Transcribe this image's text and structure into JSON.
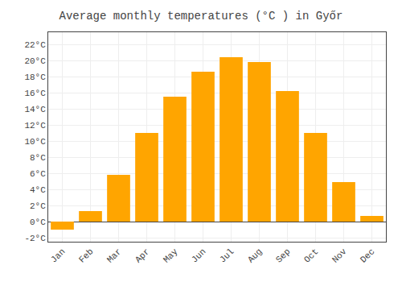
{
  "chart_data": {
    "type": "bar",
    "title": "Average monthly temperatures (°C ) in Győr",
    "categories": [
      "Jan",
      "Feb",
      "Mar",
      "Apr",
      "May",
      "Jun",
      "Jul",
      "Aug",
      "Sep",
      "Oct",
      "Nov",
      "Dec"
    ],
    "values": [
      -1.0,
      1.3,
      5.8,
      11.0,
      15.5,
      18.6,
      20.4,
      19.8,
      16.2,
      11.0,
      4.9,
      0.7
    ],
    "color": "#FFA500",
    "ylim": [
      -2.5,
      23.5
    ],
    "yticks": [
      {
        "value": -2,
        "label": "-2°C"
      },
      {
        "value": 0,
        "label": "0°C"
      },
      {
        "value": 2,
        "label": "2°C"
      },
      {
        "value": 4,
        "label": "4°C"
      },
      {
        "value": 6,
        "label": "6°C"
      },
      {
        "value": 8,
        "label": "8°C"
      },
      {
        "value": 10,
        "label": "10°C"
      },
      {
        "value": 12,
        "label": "12°C"
      },
      {
        "value": 14,
        "label": "14°C"
      },
      {
        "value": 16,
        "label": "16°C"
      },
      {
        "value": 18,
        "label": "18°C"
      },
      {
        "value": 20,
        "label": "20°C"
      },
      {
        "value": 22,
        "label": "22°C"
      }
    ],
    "grid": true
  }
}
